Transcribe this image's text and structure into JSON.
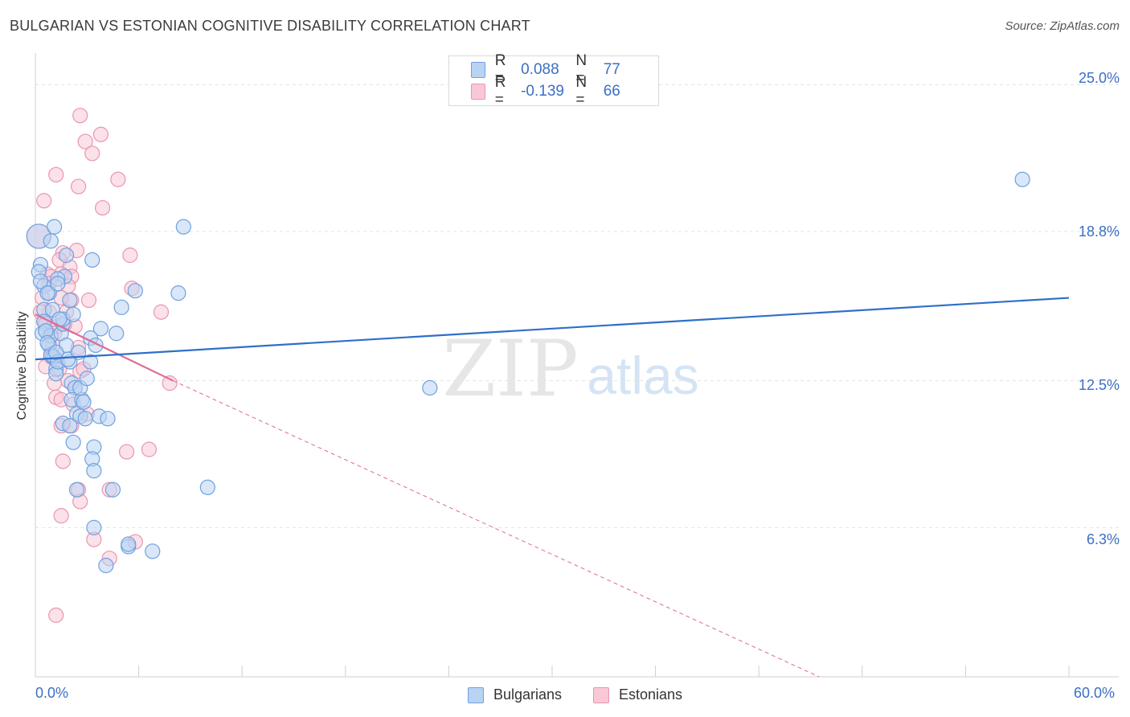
{
  "header": {
    "title": "BULGARIAN VS ESTONIAN COGNITIVE DISABILITY CORRELATION CHART",
    "source": "Source: ZipAtlas.com"
  },
  "stats": {
    "bulgarians": {
      "r_label": "R =",
      "r_value": "0.088",
      "n_label": "N =",
      "n_value": "77",
      "color": "#7aaee8"
    },
    "estonians": {
      "r_label": "R =",
      "r_value": "-0.139",
      "n_label": "N =",
      "n_value": "66",
      "color": "#f2a3bd"
    }
  },
  "legend": {
    "bulgarians": "Bulgarians",
    "estonians": "Estonians"
  },
  "colors": {
    "blue_fill": "#b9d3f3",
    "blue_stroke": "#6fa1e0",
    "blue_line": "#2f6fc9",
    "pink_fill": "#f8c8d6",
    "pink_stroke": "#e995b1",
    "pink_line": "#e16b93",
    "tick_text": "#3b6fc4"
  },
  "chart_data": {
    "type": "scatter",
    "title": "BULGARIAN VS ESTONIAN COGNITIVE DISABILITY CORRELATION CHART",
    "xlabel": "",
    "ylabel": "Cognitive Disability",
    "xlim": [
      0,
      60
    ],
    "ylim": [
      0,
      26.2
    ],
    "x_tick_labels": [
      "0.0%",
      "60.0%"
    ],
    "y_ticks": [
      {
        "value": 6.3,
        "label": "6.3%"
      },
      {
        "value": 12.5,
        "label": "12.5%"
      },
      {
        "value": 18.8,
        "label": "18.8%"
      },
      {
        "value": 25.0,
        "label": "25.0%"
      }
    ],
    "grid": "horizontal dashed",
    "legend_position": "bottom-center",
    "watermark": "ZIPatlas",
    "series": [
      {
        "name": "Bulgarians",
        "trend": {
          "x": [
            0,
            60
          ],
          "y": [
            13.4,
            16.0
          ]
        },
        "points": [
          [
            0.2,
            18.6
          ],
          [
            0.3,
            17.4
          ],
          [
            0.2,
            17.1
          ],
          [
            0.5,
            16.5
          ],
          [
            0.3,
            16.7
          ],
          [
            0.8,
            16.2
          ],
          [
            0.7,
            16.2
          ],
          [
            0.5,
            15.5
          ],
          [
            0.5,
            15.0
          ],
          [
            0.4,
            14.5
          ],
          [
            0.6,
            14.6
          ],
          [
            0.9,
            14.4
          ],
          [
            0.8,
            14.0
          ],
          [
            1.0,
            13.5
          ],
          [
            1.1,
            13.5
          ],
          [
            1.2,
            13.0
          ],
          [
            0.9,
            13.6
          ],
          [
            1.2,
            12.8
          ],
          [
            1.3,
            13.3
          ],
          [
            1.5,
            14.5
          ],
          [
            1.6,
            14.9
          ],
          [
            1.6,
            15.1
          ],
          [
            1.8,
            14.0
          ],
          [
            2.0,
            13.3
          ],
          [
            2.1,
            12.4
          ],
          [
            2.3,
            12.2
          ],
          [
            2.1,
            11.7
          ],
          [
            2.4,
            11.1
          ],
          [
            2.6,
            11.0
          ],
          [
            2.9,
            10.9
          ],
          [
            2.7,
            11.7
          ],
          [
            2.8,
            11.6
          ],
          [
            1.6,
            10.7
          ],
          [
            2.0,
            10.6
          ],
          [
            2.2,
            9.9
          ],
          [
            3.4,
            9.7
          ],
          [
            3.3,
            9.2
          ],
          [
            3.4,
            8.7
          ],
          [
            4.5,
            7.9
          ],
          [
            2.4,
            7.9
          ],
          [
            3.4,
            6.3
          ],
          [
            4.1,
            4.7
          ],
          [
            5.4,
            5.5
          ],
          [
            6.8,
            5.3
          ],
          [
            5.4,
            5.6
          ],
          [
            1.1,
            19.0
          ],
          [
            0.9,
            18.4
          ],
          [
            1.8,
            17.8
          ],
          [
            1.7,
            16.9
          ],
          [
            1.3,
            16.8
          ],
          [
            1.3,
            16.6
          ],
          [
            2.0,
            15.9
          ],
          [
            2.2,
            15.3
          ],
          [
            3.3,
            17.6
          ],
          [
            5.8,
            16.3
          ],
          [
            8.3,
            16.2
          ],
          [
            8.6,
            19.0
          ],
          [
            5.0,
            15.6
          ],
          [
            4.7,
            14.5
          ],
          [
            3.8,
            14.7
          ],
          [
            3.2,
            14.3
          ],
          [
            3.5,
            14.0
          ],
          [
            3.2,
            13.3
          ],
          [
            3.7,
            11.0
          ],
          [
            1.9,
            13.4
          ],
          [
            2.6,
            12.2
          ],
          [
            3.0,
            12.6
          ],
          [
            4.2,
            10.9
          ],
          [
            2.5,
            13.7
          ],
          [
            1.0,
            15.5
          ],
          [
            0.6,
            14.6
          ],
          [
            0.7,
            14.1
          ],
          [
            1.2,
            13.7
          ],
          [
            1.4,
            15.1
          ],
          [
            10.0,
            8.0
          ],
          [
            22.9,
            12.2
          ],
          [
            57.3,
            21.0
          ]
        ]
      },
      {
        "name": "Estonians",
        "trend": {
          "x": [
            0,
            8.0
          ],
          "y": [
            15.3,
            12.5
          ]
        },
        "trend_extended": {
          "x": [
            8.0,
            45.5
          ],
          "y": [
            12.5,
            0.0
          ]
        },
        "points": [
          [
            0.2,
            18.6
          ],
          [
            0.5,
            20.1
          ],
          [
            1.2,
            21.2
          ],
          [
            2.5,
            20.7
          ],
          [
            2.6,
            23.7
          ],
          [
            2.9,
            22.6
          ],
          [
            3.3,
            22.1
          ],
          [
            3.8,
            22.9
          ],
          [
            3.9,
            19.8
          ],
          [
            4.8,
            21.0
          ],
          [
            5.5,
            17.8
          ],
          [
            2.4,
            18.0
          ],
          [
            1.6,
            17.9
          ],
          [
            1.4,
            17.6
          ],
          [
            2.0,
            17.3
          ],
          [
            1.5,
            17.0
          ],
          [
            2.1,
            16.9
          ],
          [
            0.7,
            17.0
          ],
          [
            0.9,
            16.9
          ],
          [
            0.8,
            16.6
          ],
          [
            1.9,
            16.5
          ],
          [
            2.1,
            15.9
          ],
          [
            1.5,
            16.0
          ],
          [
            3.1,
            15.9
          ],
          [
            5.6,
            16.4
          ],
          [
            1.8,
            15.4
          ],
          [
            0.8,
            15.4
          ],
          [
            0.3,
            15.4
          ],
          [
            0.5,
            15.0
          ],
          [
            0.6,
            14.9
          ],
          [
            0.9,
            14.7
          ],
          [
            1.3,
            14.8
          ],
          [
            1.1,
            14.5
          ],
          [
            2.3,
            14.8
          ],
          [
            2.5,
            13.9
          ],
          [
            1.2,
            13.4
          ],
          [
            0.9,
            13.5
          ],
          [
            1.4,
            13.0
          ],
          [
            0.6,
            13.1
          ],
          [
            2.6,
            12.9
          ],
          [
            2.3,
            12.2
          ],
          [
            1.9,
            12.5
          ],
          [
            1.1,
            12.4
          ],
          [
            1.2,
            11.8
          ],
          [
            1.5,
            11.7
          ],
          [
            2.2,
            11.5
          ],
          [
            1.5,
            10.6
          ],
          [
            2.1,
            10.6
          ],
          [
            7.3,
            15.4
          ],
          [
            7.8,
            12.4
          ],
          [
            5.3,
            9.5
          ],
          [
            6.6,
            9.6
          ],
          [
            1.6,
            9.1
          ],
          [
            2.5,
            7.9
          ],
          [
            4.3,
            7.9
          ],
          [
            2.6,
            7.4
          ],
          [
            1.5,
            6.8
          ],
          [
            3.4,
            5.8
          ],
          [
            5.8,
            5.7
          ],
          [
            4.3,
            5.0
          ],
          [
            1.2,
            2.6
          ],
          [
            0.4,
            16.0
          ],
          [
            1.0,
            14.0
          ],
          [
            2.8,
            13.0
          ],
          [
            1.7,
            14.9
          ],
          [
            3.0,
            11.1
          ]
        ]
      }
    ]
  }
}
